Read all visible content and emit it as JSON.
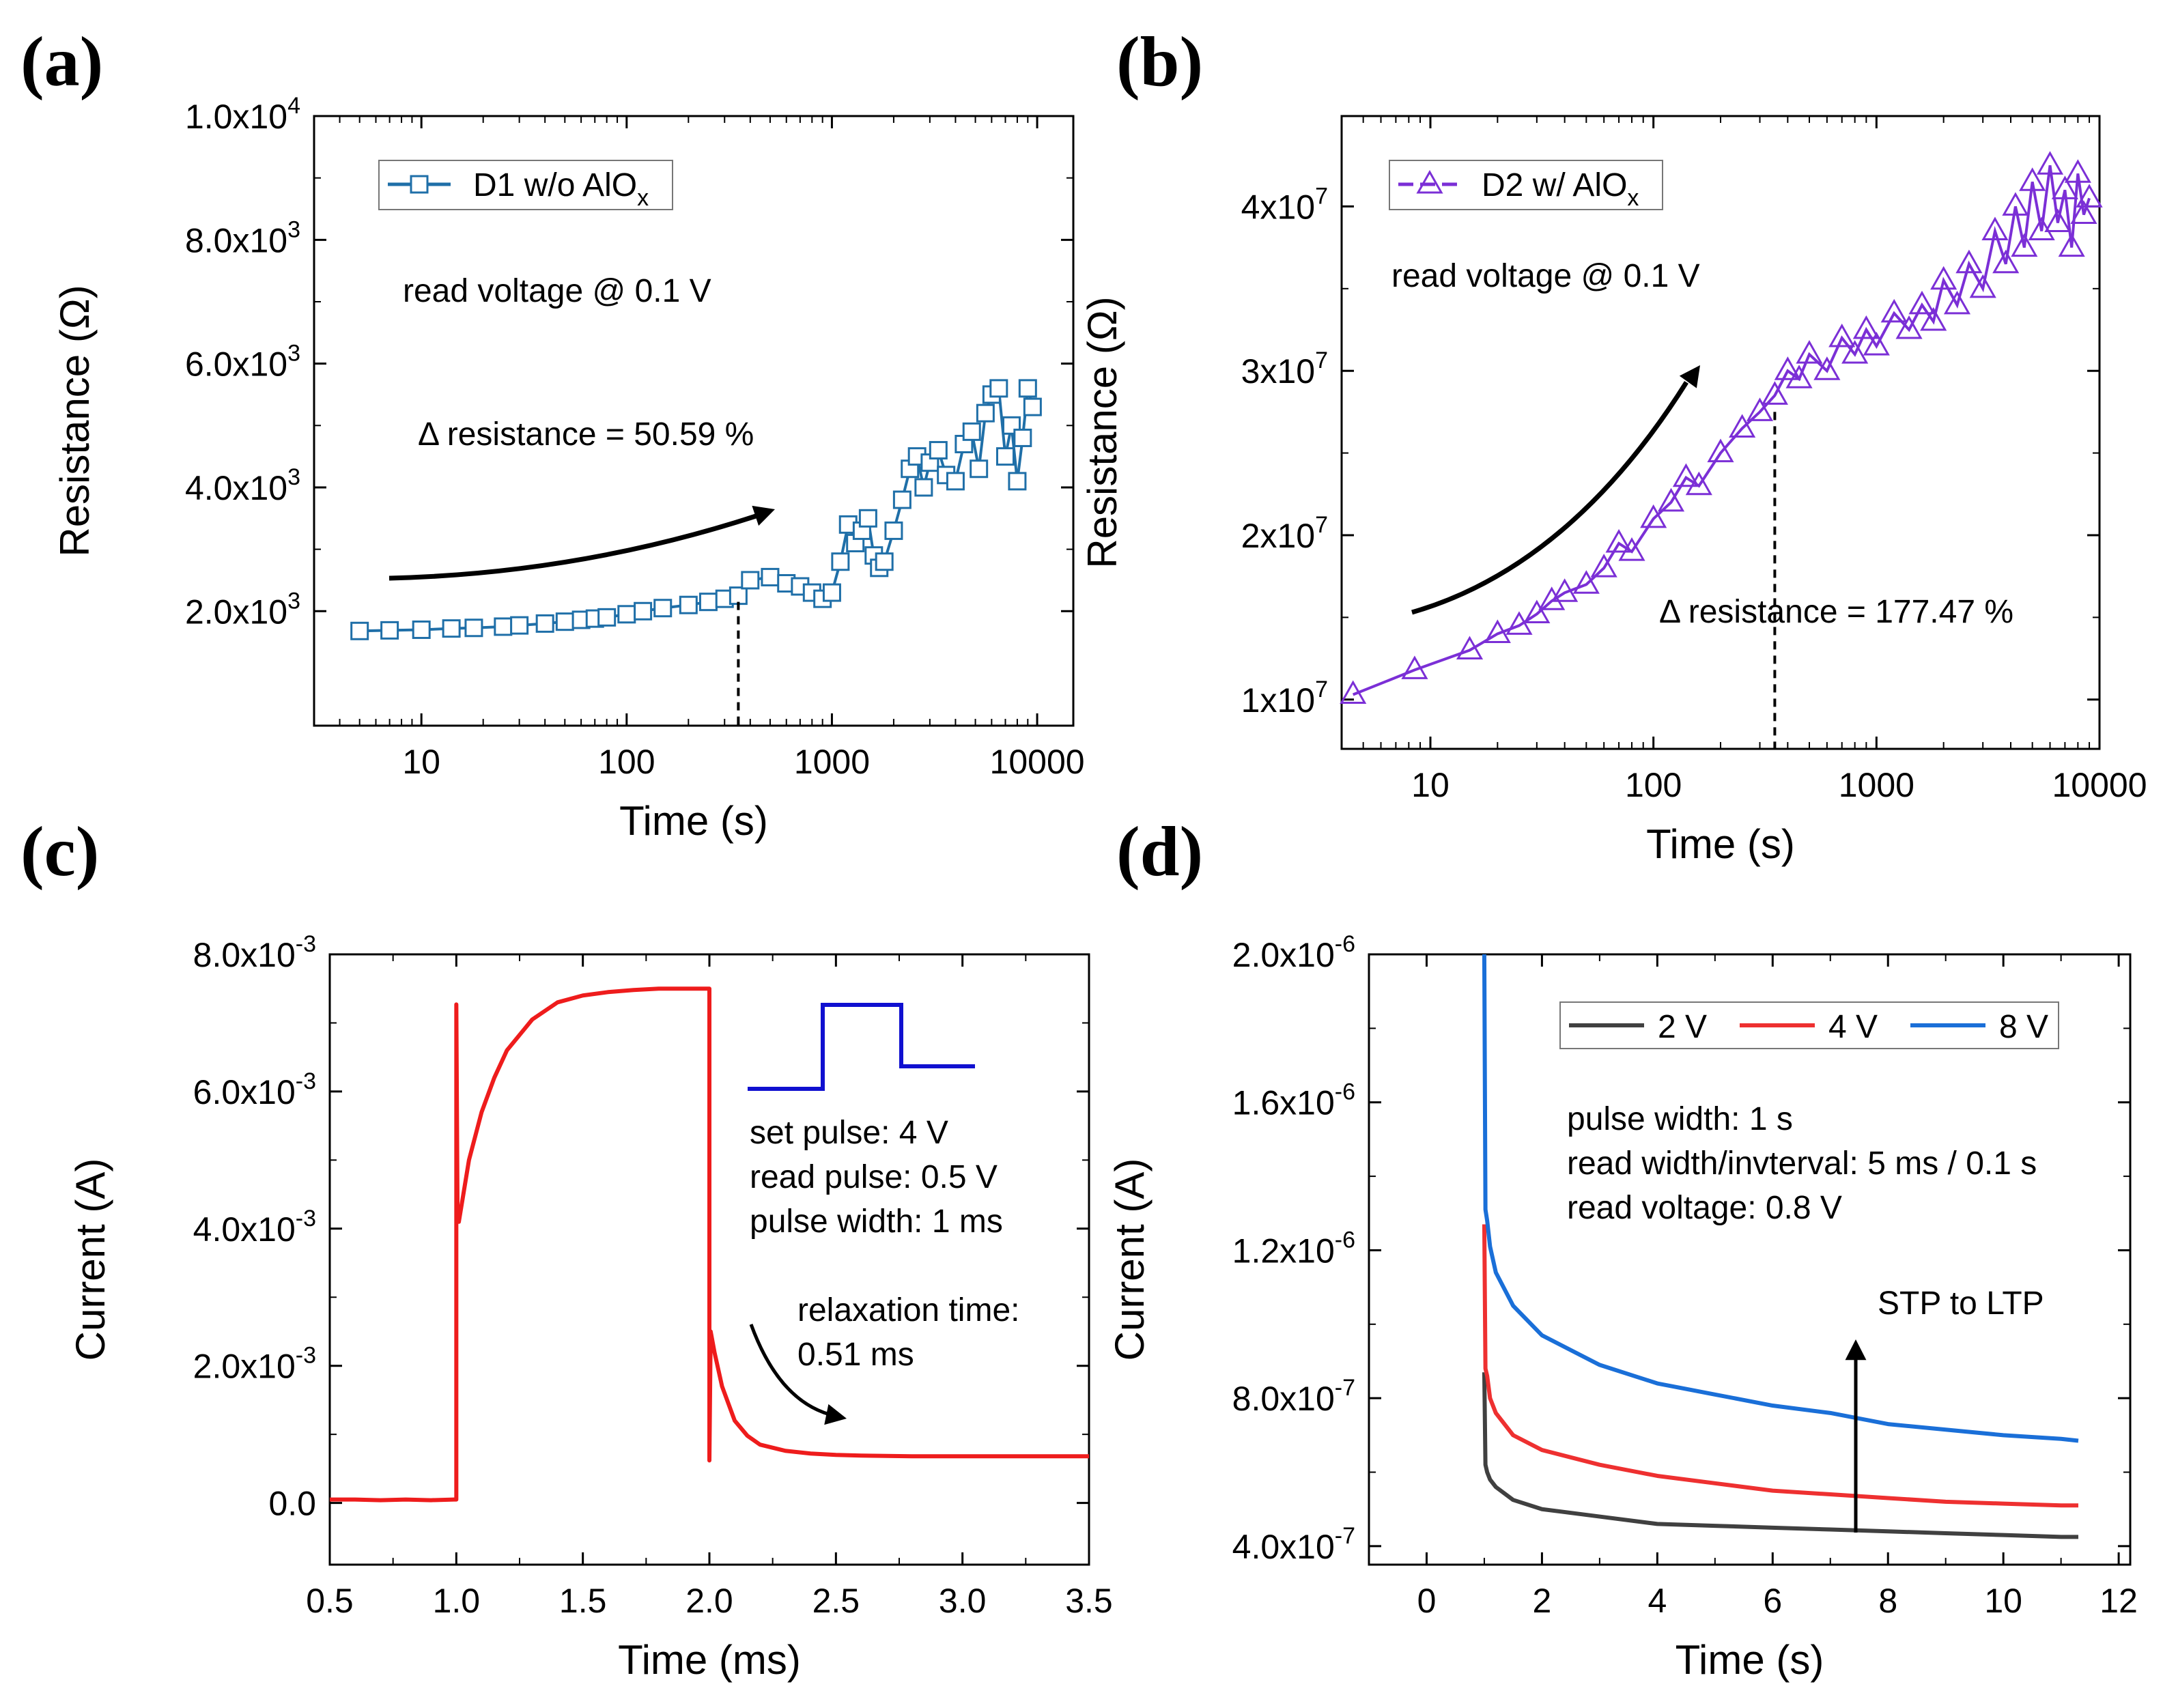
{
  "chart_data": [
    {
      "id": "a",
      "panel_label": "(a)",
      "type": "scatter",
      "xscale": "log",
      "xlim": [
        3,
        15000
      ],
      "ylim": [
        150,
        10000
      ],
      "xticks": [
        10,
        100,
        1000,
        10000
      ],
      "xtick_labels": [
        "10",
        "100",
        "1000",
        "10000"
      ],
      "yticks": [
        2000,
        4000,
        6000,
        8000,
        10000
      ],
      "ytick_labels": [
        {
          "mantissa": "2.0x10",
          "exp": "3"
        },
        {
          "mantissa": "4.0x10",
          "exp": "3"
        },
        {
          "mantissa": "6.0x10",
          "exp": "3"
        },
        {
          "mantissa": "8.0x10",
          "exp": "3"
        },
        {
          "mantissa": "1.0x10",
          "exp": "4"
        }
      ],
      "xlabel": "Time (s)",
      "ylabel": "Resistance (Ω)",
      "legend": {
        "base": "D1 w/o AlO",
        "sub": "x"
      },
      "series_color": "#1f6fa8",
      "marker": "square",
      "annotations": [
        "read voltage @ 0.1 V",
        "Δ resistance = 50.59 %"
      ],
      "marker_line_x": 350,
      "series": [
        {
          "name": "D1 w/o AlOx",
          "x": [
            5,
            7,
            10,
            14,
            18,
            25,
            30,
            40,
            50,
            60,
            70,
            80,
            100,
            120,
            150,
            200,
            250,
            300,
            350,
            400,
            500,
            600,
            700,
            800,
            900,
            1000,
            1100,
            1200,
            1300,
            1400,
            1500,
            1600,
            1700,
            1800,
            2000,
            2200,
            2400,
            2600,
            2800,
            3000,
            3300,
            3600,
            4000,
            4400,
            4800,
            5200,
            5600,
            6000,
            6500,
            7000,
            7500,
            8000,
            8500,
            9000,
            9500
          ],
          "y": [
            1680,
            1690,
            1700,
            1720,
            1730,
            1750,
            1770,
            1800,
            1830,
            1860,
            1880,
            1900,
            1950,
            2000,
            2050,
            2100,
            2150,
            2200,
            2250,
            2500,
            2550,
            2450,
            2400,
            2300,
            2200,
            2300,
            2800,
            3400,
            3100,
            3300,
            3500,
            2900,
            2700,
            2800,
            3300,
            3800,
            4300,
            4500,
            4000,
            4400,
            4600,
            4200,
            4100,
            4700,
            4900,
            4300,
            5200,
            5500,
            5600,
            4500,
            5000,
            4100,
            4800,
            5600,
            5300
          ]
        }
      ]
    },
    {
      "id": "b",
      "panel_label": "(b)",
      "type": "scatter",
      "xscale": "log",
      "xlim": [
        4,
        10000
      ],
      "ylim": [
        7000000,
        45500000
      ],
      "xticks": [
        10,
        100,
        1000,
        10000
      ],
      "xtick_labels": [
        "10",
        "100",
        "1000",
        "10000"
      ],
      "yticks": [
        10000000,
        20000000,
        30000000,
        40000000
      ],
      "ytick_labels": [
        {
          "mantissa": "1x10",
          "exp": "7"
        },
        {
          "mantissa": "2x10",
          "exp": "7"
        },
        {
          "mantissa": "3x10",
          "exp": "7"
        },
        {
          "mantissa": "4x10",
          "exp": "7"
        }
      ],
      "xlabel": "Time (s)",
      "ylabel": "Resistance (Ω)",
      "legend": {
        "base": "D2 w/ AlO",
        "sub": "x"
      },
      "series_color": "#7b2fd6",
      "marker": "triangle",
      "annotations": [
        "read  voltage @ 0.1 V",
        "Δ resistance = 177.47 %"
      ],
      "marker_line_x": 350,
      "series": [
        {
          "name": "D2 w/ AlOx",
          "x": [
            4.5,
            8.5,
            15,
            20,
            25,
            30,
            35,
            40,
            50,
            60,
            70,
            80,
            100,
            120,
            140,
            160,
            200,
            250,
            300,
            350,
            400,
            450,
            500,
            600,
            700,
            800,
            900,
            1000,
            1200,
            1400,
            1600,
            1800,
            2000,
            2300,
            2600,
            3000,
            3400,
            3800,
            4200,
            4600,
            5000,
            5500,
            6000,
            6500,
            7000,
            7500,
            8000,
            8500,
            9000
          ],
          "y": [
            10300000,
            11800000,
            13000000,
            14000000,
            14500000,
            15200000,
            16000000,
            16500000,
            17000000,
            18000000,
            19500000,
            19000000,
            21000000,
            22000000,
            23500000,
            23000000,
            25000000,
            26500000,
            27500000,
            28500000,
            30000000,
            29500000,
            31000000,
            30000000,
            32000000,
            31000000,
            32500000,
            31500000,
            33500000,
            32500000,
            34000000,
            33000000,
            35500000,
            34000000,
            36500000,
            35000000,
            38500000,
            36500000,
            40000000,
            37500000,
            41500000,
            38500000,
            42500000,
            39000000,
            41000000,
            37500000,
            42000000,
            39500000,
            40500000
          ]
        }
      ]
    },
    {
      "id": "c",
      "panel_label": "(c)",
      "type": "line",
      "xscale": "linear",
      "xlim": [
        0.5,
        3.5
      ],
      "ylim": [
        -0.0009,
        0.008
      ],
      "xticks": [
        0.5,
        1.0,
        1.5,
        2.0,
        2.5,
        3.0,
        3.5
      ],
      "xtick_labels": [
        "0.5",
        "1.0",
        "1.5",
        "2.0",
        "2.5",
        "3.0",
        "3.5"
      ],
      "yticks": [
        0,
        0.002,
        0.004,
        0.006,
        0.008
      ],
      "ytick_labels": [
        {
          "mantissa": "0.0",
          "exp": ""
        },
        {
          "mantissa": "2.0x10",
          "exp": "-3"
        },
        {
          "mantissa": "4.0x10",
          "exp": "-3"
        },
        {
          "mantissa": "6.0x10",
          "exp": "-3"
        },
        {
          "mantissa": "8.0x10",
          "exp": "-3"
        }
      ],
      "xlabel": "Time (ms)",
      "ylabel": "Current (A)",
      "series_color": "#ee1c1c",
      "pulse_color": "#1010d0",
      "annotations": [
        "set pulse: 4 V",
        "read pulse: 0.5 V",
        "pulse width: 1 ms",
        "relaxation time:",
        "0.51 ms"
      ],
      "series": [
        {
          "name": "current",
          "x": [
            0.5,
            0.6,
            0.7,
            0.8,
            0.9,
            0.99,
            1.0,
            1.0,
            1.005,
            1.01,
            1.05,
            1.1,
            1.15,
            1.2,
            1.3,
            1.4,
            1.5,
            1.6,
            1.7,
            1.8,
            1.9,
            1.99,
            2.0,
            2.0,
            2.005,
            2.02,
            2.05,
            2.1,
            2.15,
            2.2,
            2.3,
            2.4,
            2.5,
            2.6,
            2.8,
            3.0,
            3.2,
            3.5
          ],
          "y": [
            5e-05,
            5e-05,
            4e-05,
            5e-05,
            4e-05,
            5e-05,
            5e-05,
            0.00727,
            0.0041,
            0.0041,
            0.005,
            0.0057,
            0.0062,
            0.0066,
            0.00705,
            0.0073,
            0.0074,
            0.00745,
            0.00748,
            0.0075,
            0.0075,
            0.0075,
            0.0075,
            0.00062,
            0.0025,
            0.0022,
            0.0017,
            0.0012,
            0.00098,
            0.00085,
            0.00076,
            0.00072,
            0.0007,
            0.00069,
            0.00068,
            0.00068,
            0.00068,
            0.00068
          ]
        }
      ]
    },
    {
      "id": "d",
      "panel_label": "(d)",
      "type": "line",
      "xscale": "linear",
      "xlim": [
        -1,
        12.2
      ],
      "ylim": [
        3.5e-07,
        2e-06
      ],
      "xticks": [
        0,
        2,
        4,
        6,
        8,
        10,
        12
      ],
      "xtick_labels": [
        "0",
        "2",
        "4",
        "6",
        "8",
        "10",
        "12"
      ],
      "yticks": [
        4e-07,
        8e-07,
        1.2e-06,
        1.6e-06,
        2e-06
      ],
      "ytick_labels": [
        {
          "mantissa": "4.0x10",
          "exp": "-7"
        },
        {
          "mantissa": "8.0x10",
          "exp": "-7"
        },
        {
          "mantissa": "1.2x10",
          "exp": "-6"
        },
        {
          "mantissa": "1.6x10",
          "exp": "-6"
        },
        {
          "mantissa": "2.0x10",
          "exp": "-6"
        }
      ],
      "xlabel": "Time (s)",
      "ylabel": "Current (A)",
      "annotations": [
        "pulse width: 1 s",
        "read width/invterval: 5 ms / 0.1 s",
        "read voltage: 0.8 V",
        "STP to LTP"
      ],
      "series": [
        {
          "name": "2 V",
          "color": "#404040",
          "x": [
            1.0,
            1.02,
            1.05,
            1.1,
            1.2,
            1.5,
            2,
            3,
            4,
            5,
            6,
            7,
            8,
            9,
            10,
            11,
            11.3
          ],
          "y": [
            8.7e-07,
            6.2e-07,
            6e-07,
            5.8e-07,
            5.6e-07,
            5.25e-07,
            5e-07,
            4.8e-07,
            4.6e-07,
            4.55e-07,
            4.5e-07,
            4.45e-07,
            4.4e-07,
            4.35e-07,
            4.3e-07,
            4.25e-07,
            4.25e-07
          ]
        },
        {
          "name": "4 V",
          "color": "#ee3030",
          "x": [
            1.0,
            1.02,
            1.05,
            1.1,
            1.2,
            1.5,
            2,
            3,
            4,
            5,
            6,
            7,
            8,
            9,
            10,
            11,
            11.3
          ],
          "y": [
            1.27e-06,
            8.8e-07,
            8.6e-07,
            8e-07,
            7.6e-07,
            7e-07,
            6.6e-07,
            6.2e-07,
            5.9e-07,
            5.7e-07,
            5.5e-07,
            5.4e-07,
            5.3e-07,
            5.2e-07,
            5.15e-07,
            5.1e-07,
            5.1e-07
          ]
        },
        {
          "name": "8 V",
          "color": "#1a6fd8",
          "x": [
            1.0,
            1.02,
            1.05,
            1.1,
            1.2,
            1.5,
            2,
            3,
            4,
            5,
            6,
            7,
            8,
            9,
            10,
            11,
            11.3
          ],
          "y": [
            2e-06,
            1.31e-06,
            1.28e-06,
            1.21e-06,
            1.14e-06,
            1.05e-06,
            9.7e-07,
            8.9e-07,
            8.4e-07,
            8.1e-07,
            7.8e-07,
            7.6e-07,
            7.3e-07,
            7.15e-07,
            7e-07,
            6.9e-07,
            6.85e-07
          ]
        }
      ]
    }
  ]
}
